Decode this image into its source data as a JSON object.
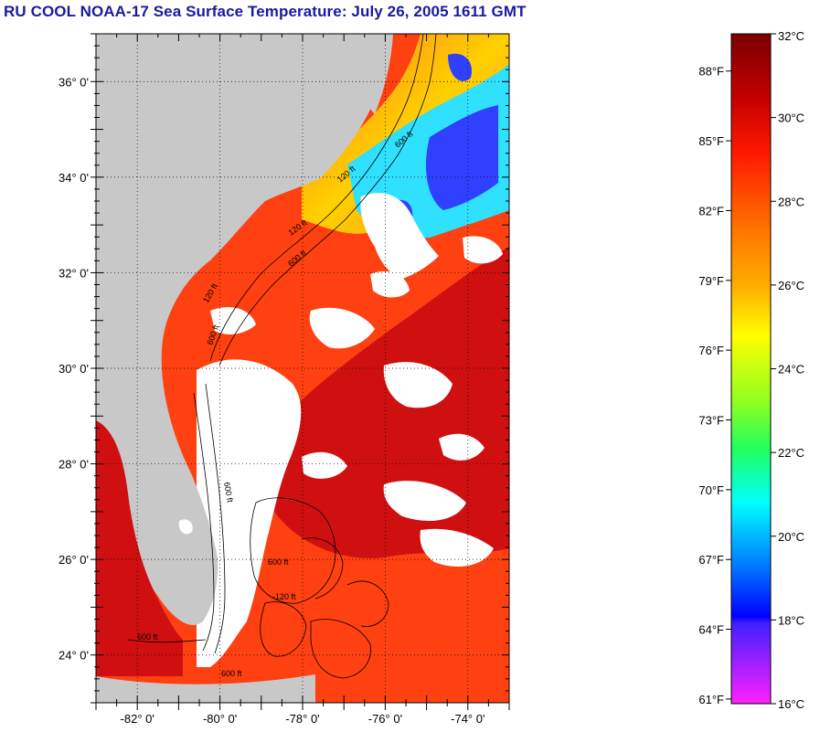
{
  "title": "RU COOL  NOAA-17  Sea Surface Temperature:  July 26, 2005 1611 GMT",
  "map": {
    "lat_labels": [
      "36° 0'",
      "34° 0'",
      "32° 0'",
      "30° 0'",
      "28° 0'",
      "26° 0'",
      "24° 0'"
    ],
    "lat_values": [
      36,
      34,
      32,
      30,
      28,
      26,
      24
    ],
    "lon_labels": [
      "-82° 0'",
      "-80° 0'",
      "-78° 0'",
      "-76° 0'",
      "-74° 0'"
    ],
    "lon_values": [
      -82,
      -80,
      -78,
      -76,
      -74
    ],
    "lat_range": [
      23.0,
      37.0
    ],
    "lon_range": [
      -83.0,
      -73.0
    ],
    "contour_labels": [
      "120 ft",
      "600 ft",
      "120 ft",
      "600 ft",
      "120 ft",
      "600 ft",
      "600 ft",
      "600 ft",
      "600 ft",
      "600 ft",
      "-120 ft"
    ],
    "colors": {
      "land": "#c8c8c8",
      "cloud": "#ffffff",
      "warm": "#ff4010",
      "hot": "#d01010",
      "cool": "#30e0ff",
      "cold": "#3040ff"
    }
  },
  "colorbar": {
    "celsius_labels": [
      "32°C",
      "30°C",
      "28°C",
      "26°C",
      "24°C",
      "22°C",
      "20°C",
      "18°C",
      "16°C"
    ],
    "celsius_values": [
      32,
      30,
      28,
      26,
      24,
      22,
      20,
      18,
      16
    ],
    "fahrenheit_labels": [
      "88°F",
      "85°F",
      "82°F",
      "79°F",
      "76°F",
      "73°F",
      "70°F",
      "67°F",
      "64°F",
      "61°F"
    ],
    "fahrenheit_values": [
      88,
      85,
      82,
      79,
      76,
      73,
      70,
      67,
      64,
      61
    ],
    "range_c": [
      16,
      32
    ]
  }
}
